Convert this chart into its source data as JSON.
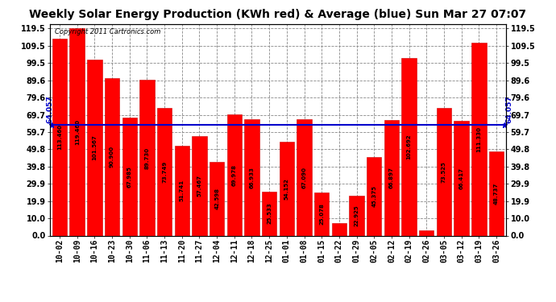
{
  "title": "Weekly Solar Energy Production (KWh red) & Average (blue) Sun Mar 27 07:07",
  "copyright": "Copyright 2011 Cartronics.com",
  "categories": [
    "10-02",
    "10-09",
    "10-16",
    "10-23",
    "10-30",
    "11-06",
    "11-13",
    "11-20",
    "11-27",
    "12-04",
    "12-11",
    "12-18",
    "12-25",
    "01-01",
    "01-08",
    "01-15",
    "01-22",
    "01-29",
    "02-05",
    "02-12",
    "02-19",
    "02-26",
    "03-05",
    "03-12",
    "03-19",
    "03-26"
  ],
  "values": [
    113.46,
    119.46,
    101.567,
    90.9,
    67.985,
    89.73,
    73.749,
    51.741,
    57.467,
    42.598,
    69.978,
    66.933,
    25.533,
    54.152,
    67.09,
    25.078,
    7.009,
    22.925,
    45.375,
    66.897,
    102.692,
    3.152,
    73.525,
    66.417,
    111.33,
    48.737
  ],
  "average": 64.057,
  "bar_color": "#ff0000",
  "avg_line_color": "#0000cc",
  "background_color": "#ffffff",
  "grid_color": "#888888",
  "title_fontsize": 10,
  "tick_fontsize": 7,
  "yticks": [
    0.0,
    10.0,
    19.9,
    29.9,
    39.8,
    49.8,
    59.7,
    69.7,
    79.6,
    89.6,
    99.5,
    109.5,
    119.5
  ],
  "ylim": [
    0,
    122
  ],
  "avg_label": "64.057"
}
